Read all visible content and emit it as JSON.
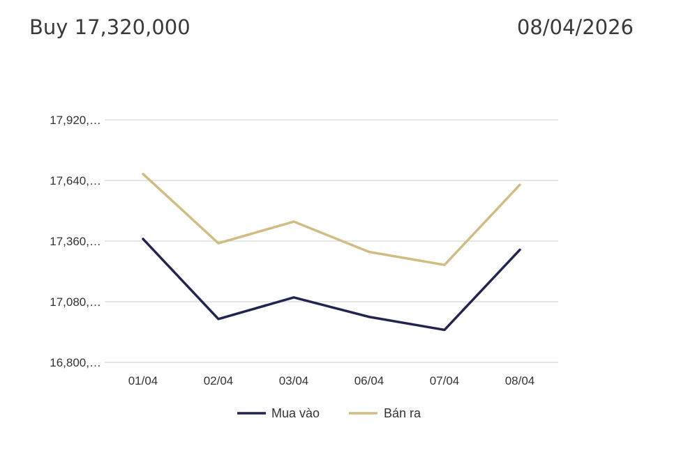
{
  "header": {
    "buy_text": "Buy 17,320,000",
    "date_text": "08/04/2026"
  },
  "colors": {
    "buy_line": "#22254f",
    "sell_line": "#d2bc86",
    "grid": "#cccccc",
    "text": "#333333"
  },
  "chart_data": {
    "type": "line",
    "title": "",
    "xlabel": "",
    "ylabel": "",
    "categories": [
      "01/04",
      "02/04",
      "03/04",
      "06/04",
      "07/04",
      "08/04"
    ],
    "y_ticks": [
      16800000,
      17080000,
      17360000,
      17640000,
      17920000
    ],
    "y_tick_labels": [
      "16,800,…",
      "17,080,…",
      "17,360,…",
      "17,640,…",
      "17,920,…"
    ],
    "ylim": [
      16800000,
      17920000
    ],
    "grid": true,
    "legend_position": "bottom",
    "series": [
      {
        "name": "Mua vào",
        "color": "#22254f",
        "values": [
          17370000,
          17000000,
          17100000,
          17010000,
          16950000,
          17320000
        ]
      },
      {
        "name": "Bán ra",
        "color": "#d2bc86",
        "values": [
          17670000,
          17350000,
          17450000,
          17310000,
          17250000,
          17620000
        ]
      }
    ]
  }
}
